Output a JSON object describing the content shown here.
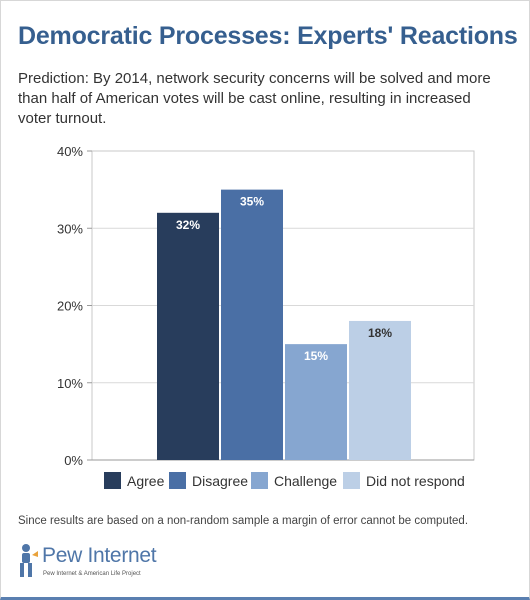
{
  "header": {
    "title": "Democratic Processes: Experts' Reactions",
    "subtitle": "Prediction: By 2014, network security concerns will be solved and more than half of American votes will be cast online, resulting in increased voter turnout."
  },
  "chart_data": {
    "type": "bar",
    "title": "",
    "xlabel": "",
    "ylabel": "",
    "categories": [
      "Agree",
      "Disagree",
      "Challenge",
      "Did not respond"
    ],
    "values": [
      32,
      35,
      15,
      18
    ],
    "value_labels": [
      "32%",
      "35%",
      "15%",
      "18%"
    ],
    "colors": [
      "#283d5c",
      "#4a6fa5",
      "#86a6d0",
      "#bccfe6"
    ],
    "label_colors": [
      "#ffffff",
      "#ffffff",
      "#ffffff",
      "#333333"
    ],
    "ylim": [
      0,
      40
    ],
    "yticks": [
      0,
      10,
      20,
      30,
      40
    ],
    "ytick_labels": [
      "0%",
      "10%",
      "20%",
      "30%",
      "40%"
    ],
    "grid": true,
    "legend_position": "bottom"
  },
  "footer": {
    "note": "Since results are based on a non-random sample a margin of error cannot be computed.",
    "logo_name": "Pew Internet",
    "logo_tagline": "Pew Internet & American Life Project",
    "logo_icon": "pew-figure-icon"
  }
}
